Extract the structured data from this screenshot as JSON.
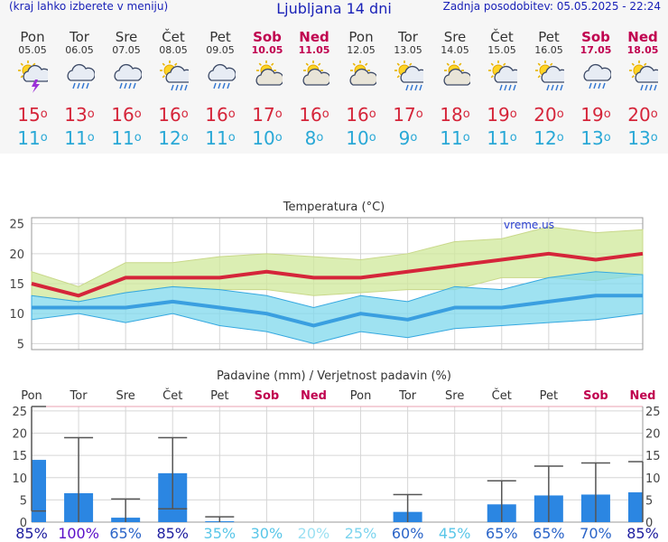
{
  "header": {
    "menu_note": "(kraj lahko izberete v meniju)",
    "title": "Ljubljana 14 dni",
    "updated": "Zadnja posodobitev: 05.05.2025 - 22:24"
  },
  "days": [
    {
      "name": "Pon",
      "date": "05.05",
      "weekend": false,
      "icon": "thunderstorm-icon",
      "max": "15",
      "min": "11"
    },
    {
      "name": "Tor",
      "date": "06.05",
      "weekend": false,
      "icon": "rain-cloud-icon",
      "max": "13",
      "min": "11"
    },
    {
      "name": "Sre",
      "date": "07.05",
      "weekend": false,
      "icon": "rain-cloud-icon",
      "max": "16",
      "min": "11"
    },
    {
      "name": "Čet",
      "date": "08.05",
      "weekend": false,
      "icon": "sun-rain-icon",
      "max": "16",
      "min": "12"
    },
    {
      "name": "Pet",
      "date": "09.05",
      "weekend": false,
      "icon": "rain-cloud-icon",
      "max": "16",
      "min": "11"
    },
    {
      "name": "Sob",
      "date": "10.05",
      "weekend": true,
      "icon": "partly-cloudy-icon",
      "max": "17",
      "min": "10"
    },
    {
      "name": "Ned",
      "date": "11.05",
      "weekend": true,
      "icon": "partly-cloudy-icon",
      "max": "16",
      "min": "8"
    },
    {
      "name": "Pon",
      "date": "12.05",
      "weekend": false,
      "icon": "partly-cloudy-icon",
      "max": "16",
      "min": "10"
    },
    {
      "name": "Tor",
      "date": "13.05",
      "weekend": false,
      "icon": "sun-rain-icon",
      "max": "17",
      "min": "9"
    },
    {
      "name": "Sre",
      "date": "14.05",
      "weekend": false,
      "icon": "partly-cloudy-icon",
      "max": "18",
      "min": "11"
    },
    {
      "name": "Čet",
      "date": "15.05",
      "weekend": false,
      "icon": "sun-rain-icon",
      "max": "19",
      "min": "11"
    },
    {
      "name": "Pet",
      "date": "16.05",
      "weekend": false,
      "icon": "sun-rain-icon",
      "max": "20",
      "min": "12"
    },
    {
      "name": "Sob",
      "date": "17.05",
      "weekend": true,
      "icon": "rain-cloud-icon",
      "max": "19",
      "min": "13"
    },
    {
      "name": "Ned",
      "date": "18.05",
      "weekend": true,
      "icon": "sun-rain-icon",
      "max": "20",
      "min": "13"
    }
  ],
  "chart_data": [
    {
      "type": "line",
      "title": "Temperatura (°C)",
      "watermark": "vreme.us",
      "x": [
        "05.05",
        "06.05",
        "07.05",
        "08.05",
        "09.05",
        "10.05",
        "11.05",
        "12.05",
        "13.05",
        "14.05",
        "15.05",
        "16.05",
        "17.05",
        "18.05"
      ],
      "ylim": [
        4,
        26
      ],
      "yticks": [
        5,
        10,
        15,
        20,
        25
      ],
      "grid": true,
      "series": [
        {
          "role": "max",
          "values": [
            15,
            13,
            16,
            16,
            16,
            17,
            16,
            16,
            17,
            18,
            19,
            20,
            19,
            20
          ]
        },
        {
          "role": "min",
          "values": [
            11,
            11,
            11,
            12,
            11,
            10,
            8,
            10,
            9,
            11,
            11,
            12,
            13,
            13
          ]
        },
        {
          "role": "max_band_high",
          "values": [
            17,
            14.5,
            18.5,
            18.5,
            19.5,
            20,
            19.5,
            19,
            20,
            22,
            22.5,
            24.5,
            23.5,
            24
          ]
        },
        {
          "role": "max_band_low",
          "values": [
            13,
            12,
            13.5,
            14.5,
            14,
            14,
            13,
            13.5,
            14,
            14,
            16,
            16,
            15.5,
            16.5
          ]
        },
        {
          "role": "min_band_high",
          "values": [
            13,
            12,
            13.5,
            14.5,
            14,
            13,
            11,
            13,
            12,
            14.5,
            14,
            16,
            17,
            16.5
          ]
        },
        {
          "role": "min_band_low",
          "values": [
            9,
            10,
            8.5,
            10,
            8,
            7,
            5,
            7,
            6,
            7.5,
            8,
            8.5,
            9,
            10
          ]
        }
      ],
      "colors": {
        "max_line": "#d5253a",
        "min_line": "#3a9fe0",
        "max_band": "#cfe89a",
        "min_band": "#7fd8ec"
      }
    },
    {
      "type": "bar",
      "title": "Padavine (mm) / Verjetnost padavin (%)",
      "categories": [
        "Pon",
        "Tor",
        "Sre",
        "Čet",
        "Pet",
        "Sob",
        "Ned",
        "Pon",
        "Tor",
        "Sre",
        "Čet",
        "Pet",
        "Sob",
        "Ned"
      ],
      "weekend": [
        false,
        false,
        false,
        false,
        false,
        true,
        true,
        false,
        false,
        false,
        false,
        false,
        true,
        true
      ],
      "values": [
        14,
        6.5,
        1,
        11,
        0.2,
        0,
        0,
        0,
        2.3,
        0,
        4,
        6,
        6.2,
        6.7
      ],
      "error_low": [
        2.5,
        0,
        0,
        3,
        0,
        0,
        0,
        0,
        0,
        0,
        0,
        0,
        0,
        0
      ],
      "error_high": [
        26,
        19,
        5.2,
        19,
        1.2,
        0,
        0,
        0,
        6.2,
        0,
        9.3,
        12.6,
        13.3,
        13.6
      ],
      "probability": [
        "85%",
        "100%",
        "65%",
        "85%",
        "35%",
        "30%",
        "20%",
        "25%",
        "60%",
        "45%",
        "65%",
        "65%",
        "70%",
        "85%"
      ],
      "probability_colors": [
        "#2020a0",
        "#5a0fc8",
        "#2a64c8",
        "#2020a0",
        "#59c6e8",
        "#59c6e8",
        "#9ce0f2",
        "#7cd4ee",
        "#2a64c8",
        "#59c6e8",
        "#2a64c8",
        "#2a64c8",
        "#2a64c8",
        "#2020a0"
      ],
      "ylim": [
        0,
        26
      ],
      "yticks": [
        0,
        5,
        10,
        15,
        20,
        25
      ],
      "bar_color": "#2b86e2"
    }
  ]
}
